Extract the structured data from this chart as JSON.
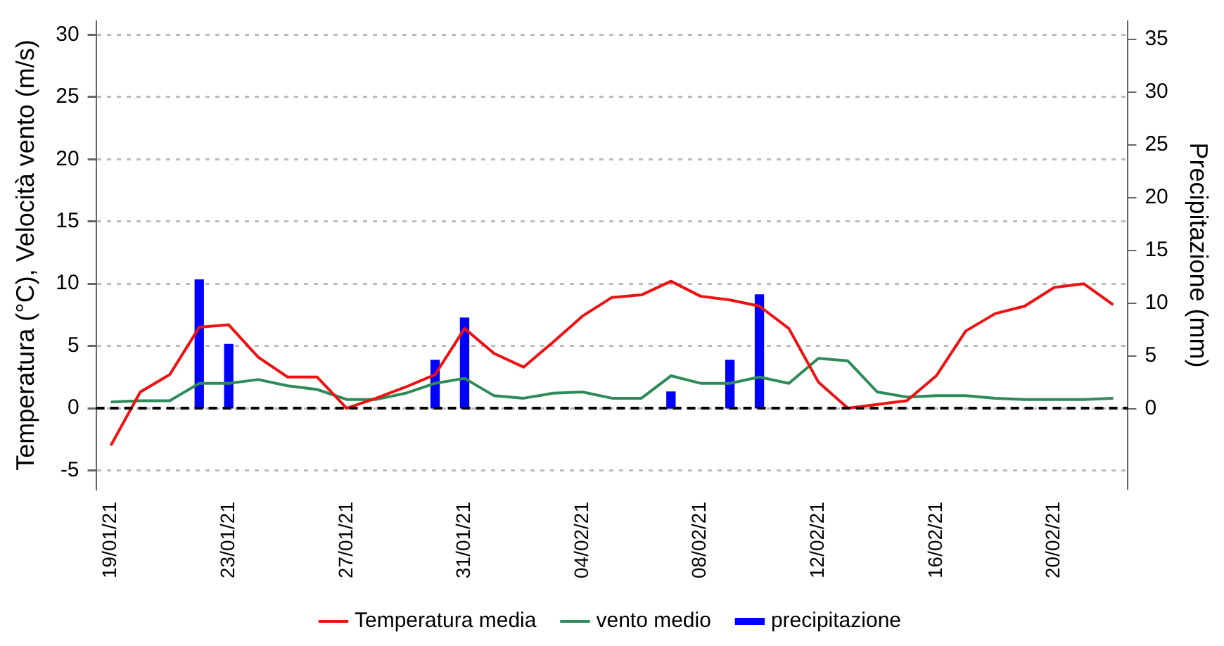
{
  "chart_data": {
    "type": "line",
    "ylabel": "Temperatura (°C), Velocità vento (m/s)",
    "y2label": "Precipitazione (mm)",
    "categories": [
      "19/01/21",
      null,
      null,
      null,
      "23/01/21",
      null,
      null,
      null,
      "27/01/21",
      null,
      null,
      null,
      "31/01/21",
      null,
      null,
      null,
      "04/02/21",
      null,
      null,
      null,
      "08/02/21",
      null,
      null,
      null,
      "12/02/21",
      null,
      null,
      null,
      "16/02/21",
      null,
      null,
      null,
      "20/02/21",
      null,
      null
    ],
    "series": [
      {
        "name": "Temperatura media",
        "color": "#ee1111",
        "values": [
          -3,
          1.3,
          2.7,
          6.5,
          6.7,
          4.1,
          2.5,
          2.5,
          0,
          0.8,
          1.7,
          2.7,
          6.4,
          4.4,
          3.3,
          5.3,
          7.4,
          8.9,
          9.1,
          10.2,
          9.0,
          8.7,
          8.2,
          6.4,
          2.1,
          0,
          0.3,
          0.6,
          2.6,
          6.2,
          7.6,
          8.2,
          9.7,
          10.0,
          8.3
        ]
      },
      {
        "name": "vento medio",
        "color": "#2e8b57",
        "values": [
          0.5,
          0.6,
          0.6,
          2.0,
          2.0,
          2.3,
          1.8,
          1.5,
          0.7,
          0.7,
          1.2,
          2.0,
          2.4,
          1.0,
          0.8,
          1.2,
          1.3,
          0.8,
          0.8,
          2.6,
          2.0,
          2.0,
          2.5,
          2.0,
          4.0,
          3.8,
          1.3,
          0.9,
          1.0,
          1.0,
          0.8,
          0.7,
          0.7,
          0.7,
          0.8
        ]
      },
      {
        "name": "precipitazione",
        "type": "bar",
        "axis": "y2",
        "color": "#0000ff",
        "values": [
          null,
          null,
          null,
          12.2,
          6.1,
          null,
          null,
          null,
          null,
          null,
          null,
          4.6,
          8.6,
          null,
          null,
          null,
          null,
          null,
          null,
          1.6,
          null,
          4.6,
          10.8,
          null,
          null,
          null,
          null,
          null,
          null,
          null,
          null,
          null,
          null,
          null,
          null
        ]
      }
    ],
    "ylim": [
      -6.5,
      31.1
    ],
    "yticks": [
      -5,
      0,
      5,
      10,
      15,
      20,
      25,
      30
    ],
    "y2lim": [
      -7.6,
      36.7
    ],
    "y2ticks": [
      0,
      5,
      10,
      15,
      20,
      25,
      30,
      35
    ],
    "grid": "y",
    "legend": "bottom",
    "marker": "none",
    "ref_lines": [
      {
        "axis": "y",
        "value": 0,
        "color": "#000000",
        "line_style": "dashed"
      }
    ]
  }
}
